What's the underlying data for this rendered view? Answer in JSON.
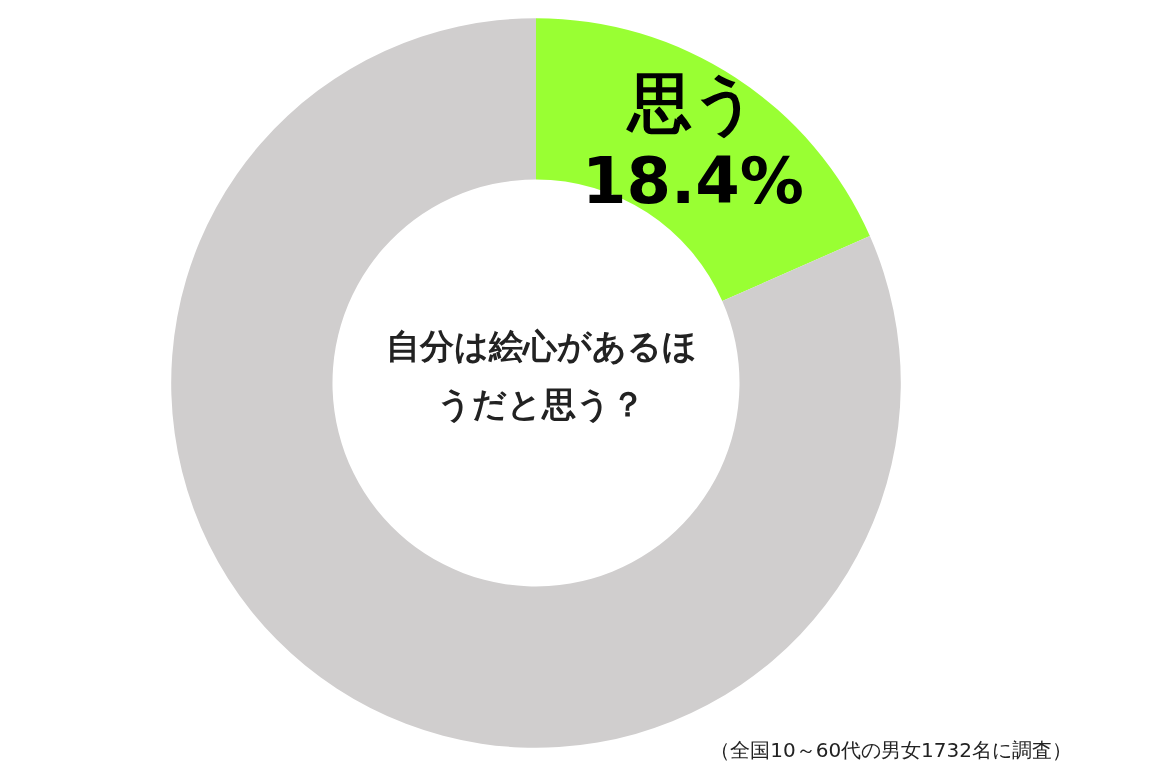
{
  "chart_data": {
    "type": "donut",
    "title": "自分は絵心があるほうだと思う？",
    "categories": [
      "思う",
      null
    ],
    "values": [
      18.4,
      81.6
    ],
    "colors": [
      "#99ff33",
      "#d0cece"
    ],
    "value_labels": [
      "18.4%",
      null
    ],
    "legend": false,
    "annotations": [
      "（全国10～60代の男女1732名に調査）"
    ]
  }
}
